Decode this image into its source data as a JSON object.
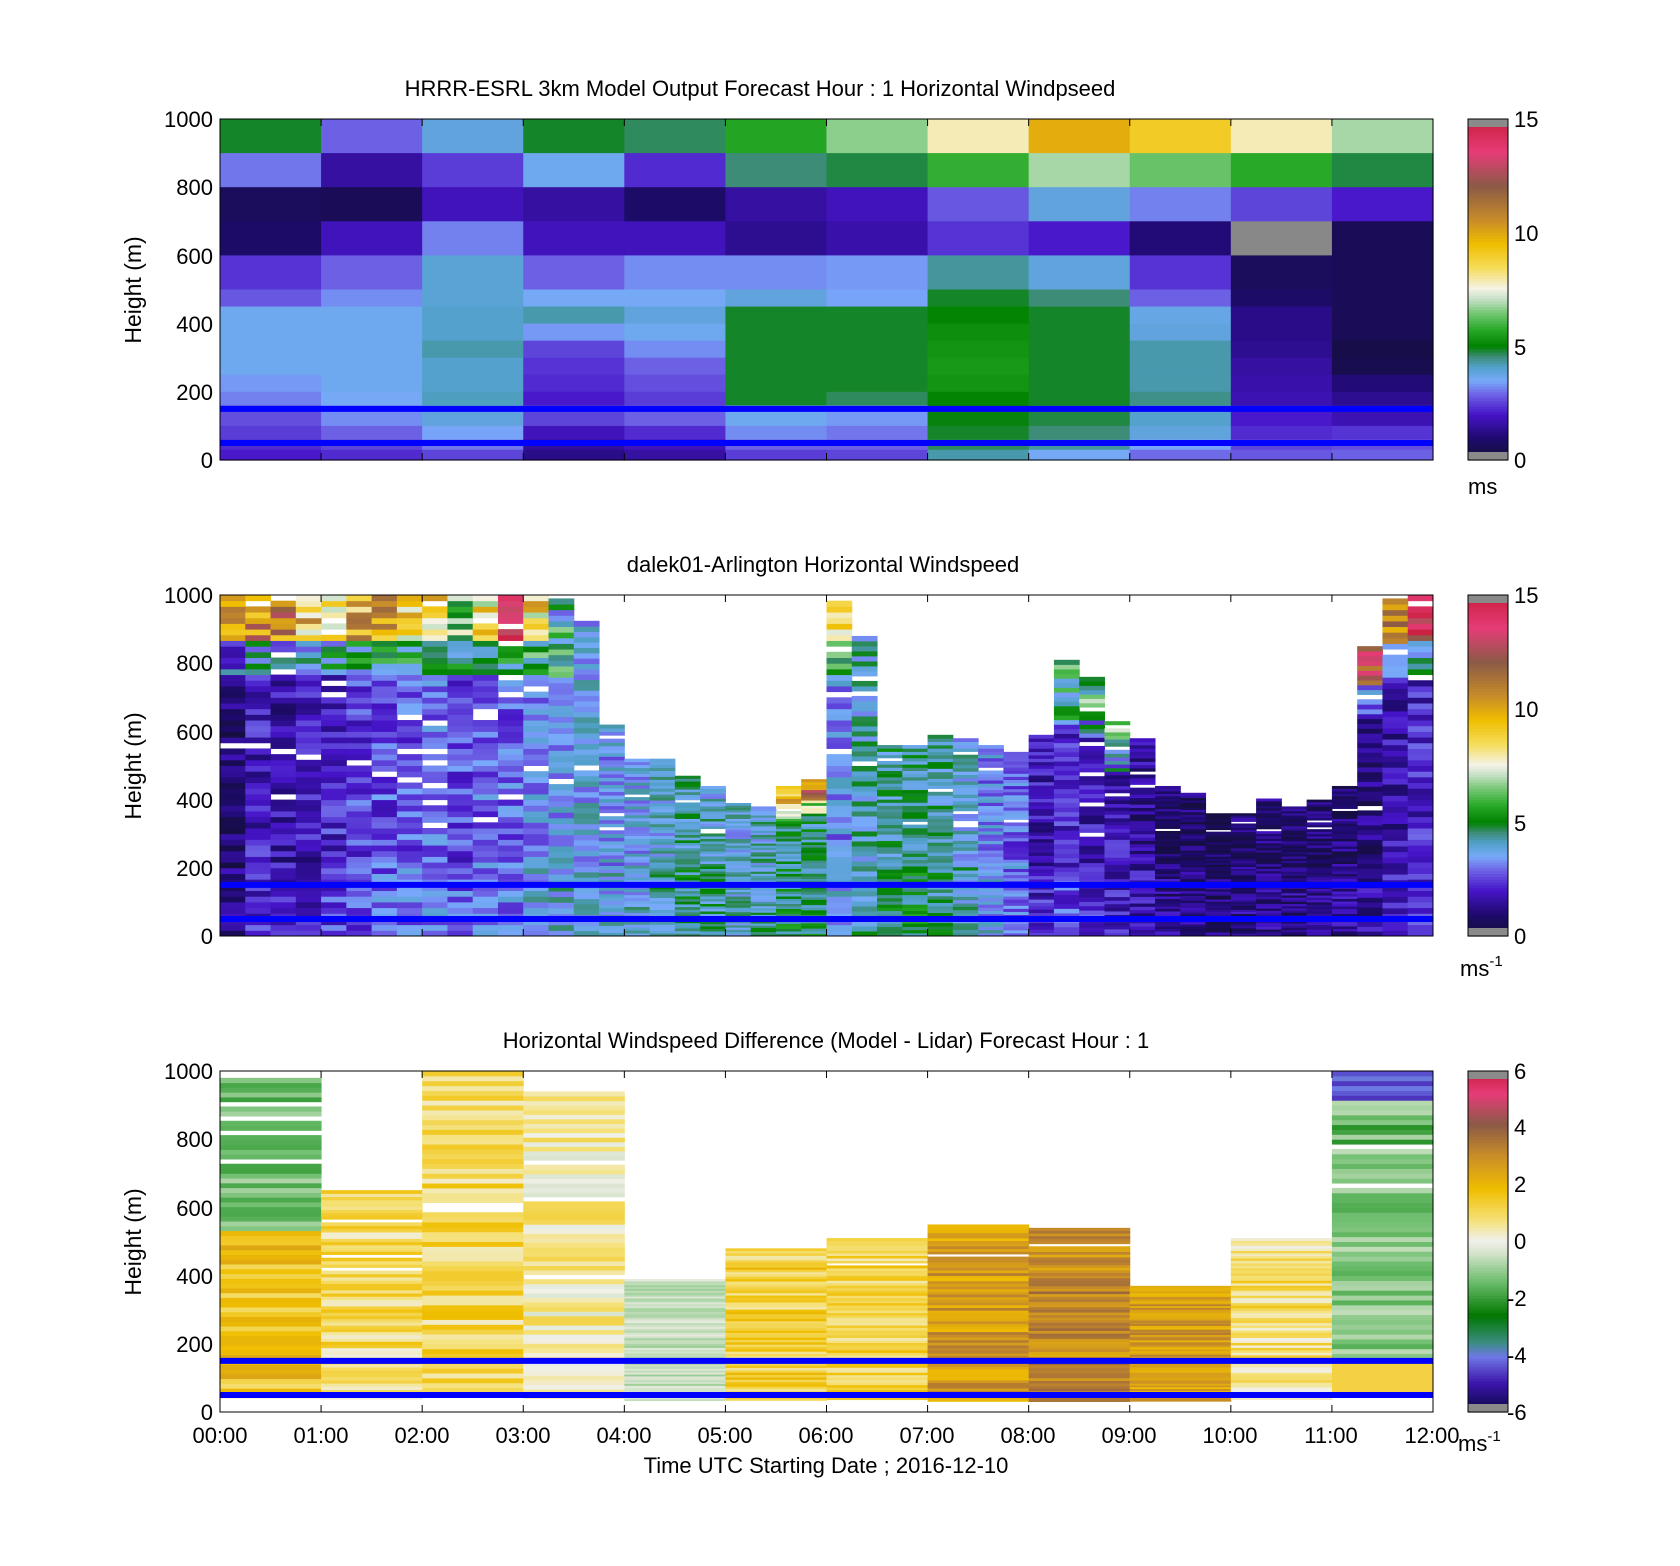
{
  "chart_data": [
    {
      "type": "heatmap",
      "title": "HRRR-ESRL 3km Model Output   Forecast Hour : 1 Horizontal Windpseed",
      "ylabel": "Height (m)",
      "xlabel": "",
      "ylim": [
        0,
        1000
      ],
      "y_ticks": [
        "0",
        "200",
        "400",
        "600",
        "800",
        "1000"
      ],
      "x_ticks": [],
      "colorbar": {
        "range": [
          0,
          15
        ],
        "ticks": [
          "0",
          "5",
          "10",
          "15"
        ],
        "unit": "ms",
        "palette": "speed"
      },
      "x_hours": [
        "00:00",
        "01:00",
        "02:00",
        "03:00",
        "04:00",
        "05:00",
        "06:00",
        "07:00",
        "08:00",
        "09:00",
        "10:00",
        "11:00"
      ],
      "heights": [
        1000,
        900,
        800,
        700,
        600,
        500,
        450,
        400,
        350,
        300,
        250,
        200,
        160,
        100,
        60,
        30
      ],
      "values": [
        [
          4.8,
          2.8,
          3.8,
          4.8,
          4.6,
          5.6,
          6.6,
          7.8,
          9.8,
          9.0,
          7.8,
          6.8
        ],
        [
          3.0,
          1.5,
          2.4,
          3.6,
          2.2,
          4.5,
          4.7,
          5.8,
          6.8,
          6.3,
          5.7,
          4.7
        ],
        [
          0.6,
          0.5,
          1.8,
          1.5,
          0.8,
          1.5,
          1.8,
          2.7,
          3.8,
          3.1,
          2.5,
          2.0
        ],
        [
          0.8,
          1.8,
          3.1,
          1.8,
          1.8,
          1.3,
          1.6,
          2.3,
          2.0,
          1.0,
          14.8,
          0.5
        ],
        [
          2.3,
          2.8,
          3.9,
          2.8,
          3.2,
          3.2,
          3.3,
          4.3,
          3.8,
          2.3,
          0.6,
          0.5
        ],
        [
          2.7,
          3.2,
          3.9,
          3.5,
          3.5,
          3.8,
          3.4,
          4.8,
          4.5,
          2.8,
          0.8,
          0.5
        ],
        [
          3.6,
          3.6,
          4.0,
          4.2,
          3.8,
          4.8,
          4.8,
          5.0,
          4.8,
          3.7,
          1.2,
          0.5
        ],
        [
          3.6,
          3.6,
          4.0,
          3.3,
          3.6,
          4.8,
          4.8,
          5.2,
          4.8,
          3.8,
          1.2,
          0.5
        ],
        [
          3.6,
          3.6,
          4.2,
          2.5,
          3.2,
          4.8,
          4.8,
          5.3,
          4.8,
          4.2,
          1.3,
          0.3
        ],
        [
          3.6,
          3.6,
          4.0,
          2.3,
          2.8,
          4.8,
          4.8,
          5.4,
          4.8,
          4.2,
          1.5,
          0.4
        ],
        [
          3.3,
          3.6,
          4.0,
          2.2,
          2.6,
          4.8,
          4.8,
          5.3,
          4.8,
          4.2,
          1.6,
          1.0
        ],
        [
          3.1,
          3.5,
          4.1,
          2.0,
          2.4,
          4.8,
          4.6,
          5.0,
          4.8,
          4.4,
          1.7,
          1.3
        ],
        [
          2.6,
          3.2,
          3.8,
          2.5,
          2.8,
          3.6,
          3.3,
          4.9,
          4.7,
          4.0,
          2.0,
          1.7
        ],
        [
          2.4,
          2.8,
          3.4,
          1.8,
          2.2,
          3.2,
          3.0,
          4.8,
          4.5,
          3.8,
          2.2,
          2.3
        ],
        [
          2.2,
          2.5,
          3.0,
          1.4,
          1.8,
          2.8,
          2.8,
          4.6,
          4.3,
          3.4,
          2.5,
          2.6
        ],
        [
          2.0,
          2.2,
          2.5,
          1.2,
          1.5,
          2.4,
          2.5,
          4.2,
          3.5,
          2.9,
          2.7,
          2.8
        ]
      ],
      "reference_lines_m": [
        150,
        50
      ]
    },
    {
      "type": "heatmap",
      "title": "dalek01-Arlington  Horizontal Windspeed",
      "ylabel": "Height (m)",
      "xlabel": "",
      "ylim": [
        0,
        1000
      ],
      "y_ticks": [
        "0",
        "200",
        "400",
        "600",
        "800",
        "1000"
      ],
      "x_ticks": [],
      "colorbar": {
        "range": [
          0,
          15
        ],
        "ticks": [
          "0",
          "5",
          "10",
          "15"
        ],
        "unit": "ms",
        "unit_exp": "-1",
        "palette": "speed"
      },
      "x_hours": [
        "00:00",
        "00:15",
        "00:30",
        "00:45",
        "01:00",
        "01:15",
        "01:30",
        "01:45",
        "02:00",
        "02:15",
        "02:30",
        "02:45",
        "03:00",
        "03:15",
        "03:30",
        "03:45",
        "04:00",
        "04:15",
        "04:30",
        "04:45",
        "05:00",
        "05:15",
        "05:30",
        "05:45",
        "06:00",
        "06:15",
        "06:30",
        "06:45",
        "07:00",
        "07:15",
        "07:30",
        "07:45",
        "08:00",
        "08:15",
        "08:30",
        "08:45",
        "09:00",
        "09:15",
        "09:30",
        "09:45",
        "10:00",
        "10:15",
        "10:30",
        "10:45",
        "11:00",
        "11:15",
        "11:30",
        "11:45"
      ],
      "data_top_m": [
        1000,
        1000,
        1000,
        1000,
        1000,
        1000,
        1000,
        1000,
        1000,
        1000,
        1000,
        1000,
        1000,
        990,
        940,
        620,
        520,
        520,
        470,
        440,
        390,
        380,
        440,
        460,
        1000,
        880,
        560,
        560,
        590,
        580,
        560,
        540,
        590,
        810,
        760,
        630,
        580,
        440,
        420,
        360,
        360,
        410,
        380,
        400,
        440,
        850,
        990,
        1000
      ],
      "blended_m": 700,
      "colors": {
        "low_speed_top": [
          0.9,
          1.9,
          1.6,
          1.8,
          2.1,
          2.4,
          2.6,
          2.7,
          2.9,
          2.5,
          2.9,
          2.8,
          3.3,
          3.5,
          3.6,
          3.4,
          3.4,
          3.8,
          4.2,
          3.9,
          3.7,
          3.9,
          4.4,
          4.4,
          3.2,
          4.0,
          4.3,
          4.5,
          4.2,
          3.7,
          3.2,
          2.8,
          1.7,
          2.2,
          1.8,
          1.7,
          1.3,
          0.9,
          0.8,
          0.7,
          0.9,
          1.0,
          0.9,
          0.9,
          1.0,
          1.1,
          1.6,
          2.0
        ],
        "top_band_hi": [
          9.5,
          10.5,
          11.0,
          9.0,
          8.5,
          9.5,
          10.0,
          8.5,
          9.0,
          6.5,
          8.0,
          14.0,
          8.5,
          4.8,
          0,
          0,
          0,
          0,
          0,
          0,
          0,
          0,
          9.0,
          11.5,
          9.0,
          0,
          0,
          0,
          0,
          0,
          0,
          0,
          0,
          5.0,
          6.0,
          5.5,
          0,
          0,
          0,
          0,
          0,
          0,
          0,
          0,
          0,
          12.0,
          11.0,
          13.5
        ]
      },
      "reference_lines_m": [
        150,
        50
      ]
    },
    {
      "type": "heatmap",
      "title": "Horizontal Windspeed Difference (Model - Lidar) Forecast Hour : 1",
      "ylabel": "Height (m)",
      "xlabel": "Time UTC  Starting Date ; 2016-12-10",
      "ylim": [
        0,
        1000
      ],
      "y_ticks": [
        "0",
        "200",
        "400",
        "600",
        "800",
        "1000"
      ],
      "x_ticks": [
        "00:00",
        "01:00",
        "02:00",
        "03:00",
        "04:00",
        "05:00",
        "06:00",
        "07:00",
        "08:00",
        "09:00",
        "10:00",
        "11:00",
        "12:00"
      ],
      "colorbar": {
        "range": [
          -6,
          6
        ],
        "ticks": [
          "-6",
          "-4",
          "-2",
          "0",
          "2",
          "4",
          "6"
        ],
        "unit": "ms",
        "unit_exp": "-1",
        "palette": "diff"
      },
      "x_hours": [
        "00:00",
        "01:00",
        "02:00",
        "03:00",
        "04:00",
        "05:00",
        "06:00",
        "07:00",
        "08:00",
        "09:00",
        "10:00",
        "11:00"
      ],
      "data_top_m": [
        980,
        660,
        1000,
        940,
        390,
        480,
        510,
        550,
        540,
        370,
        510,
        1000
      ],
      "mean_diff": [
        1.6,
        0.9,
        1.0,
        0.4,
        -1.0,
        1.2,
        1.1,
        2.6,
        3.0,
        2.6,
        0.8,
        -1.5
      ],
      "reference_lines_m": [
        150,
        50
      ]
    }
  ]
}
